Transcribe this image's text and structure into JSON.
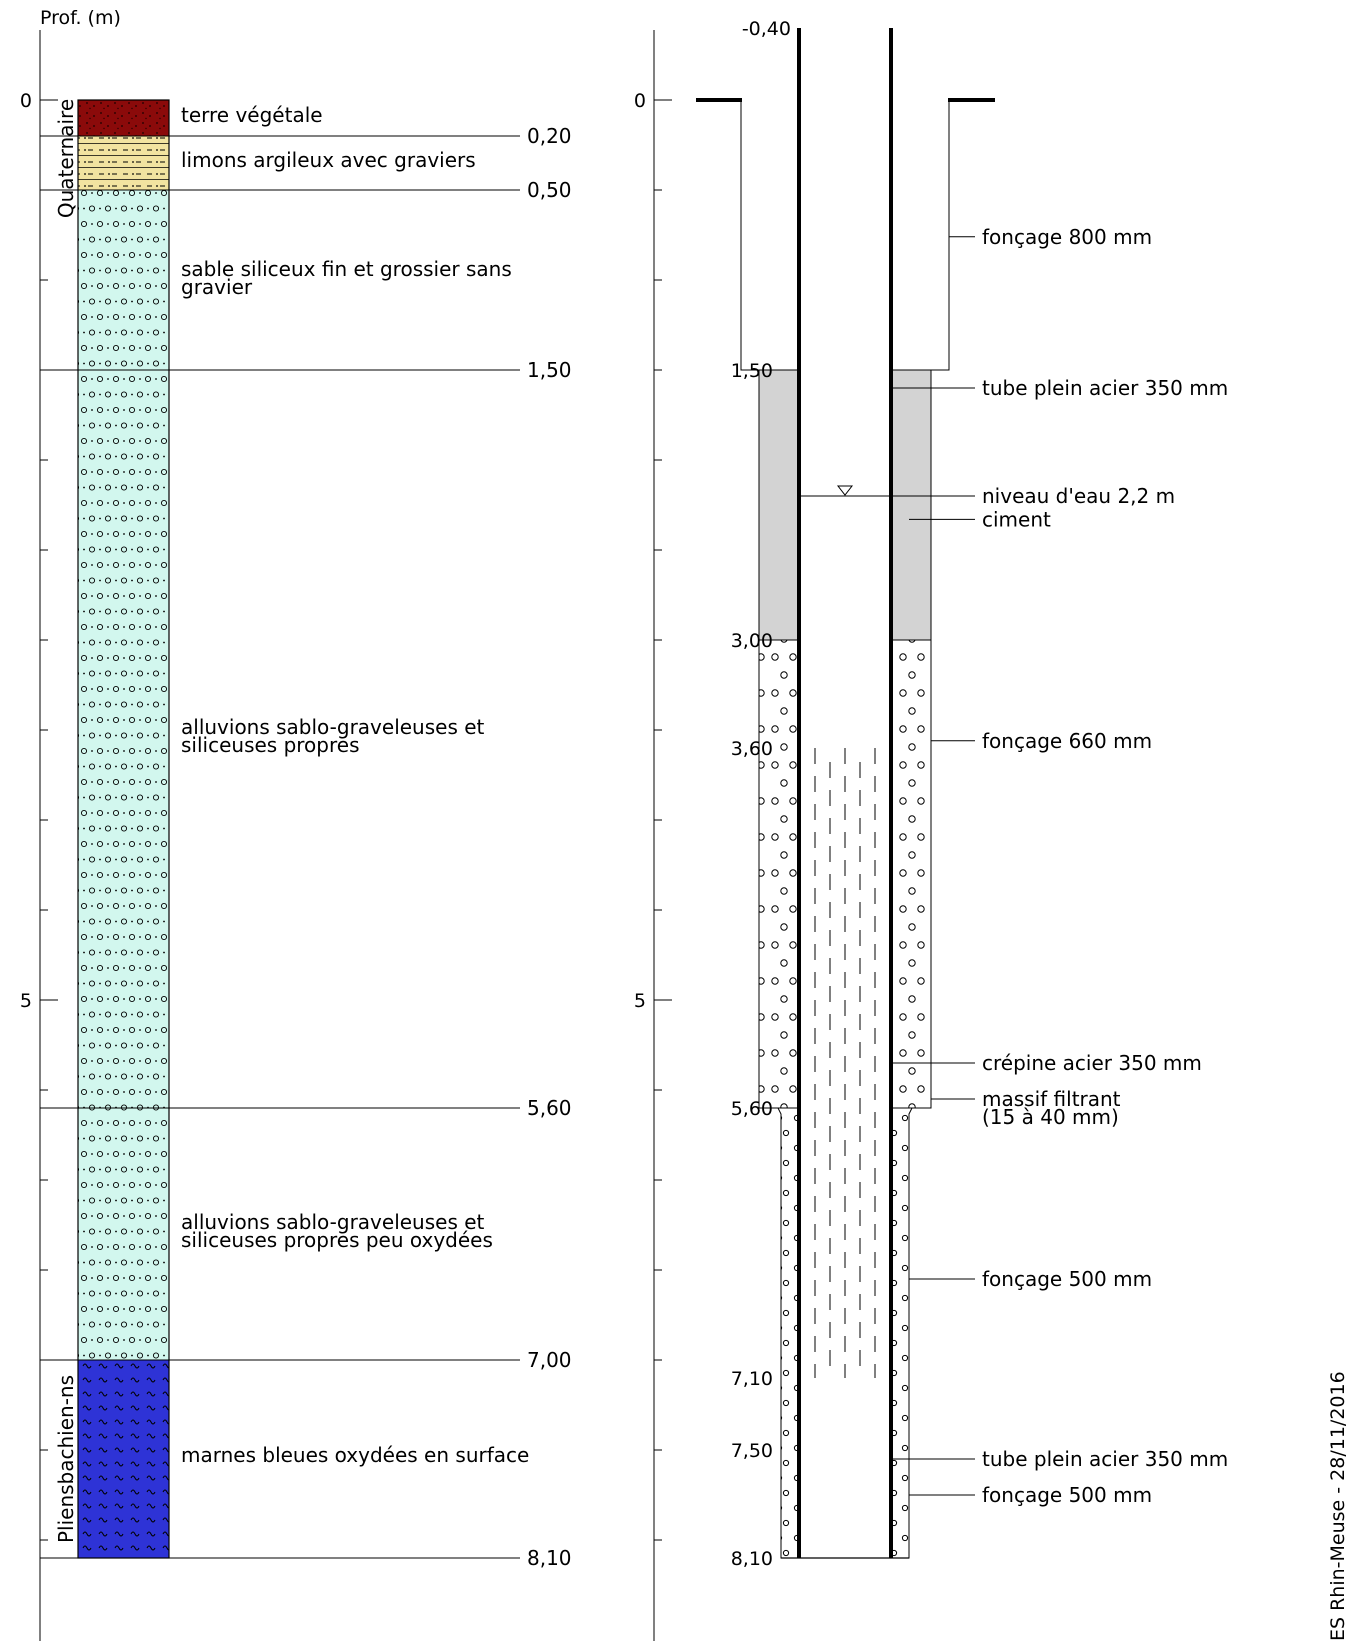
{
  "log": {
    "axis_title": "Prof. (m)",
    "axis_ticks": [
      "0",
      "5"
    ],
    "layers": [
      {
        "top": 0.0,
        "bottom": 0.2,
        "pattern": "soil",
        "color": "#8B0A0A",
        "label": "terre végétale"
      },
      {
        "top": 0.2,
        "bottom": 0.5,
        "pattern": "silt",
        "color": "#F2E3A0",
        "label": "limons argileux avec graviers"
      },
      {
        "top": 0.5,
        "bottom": 1.5,
        "pattern": "sand",
        "color": "#D2F7EE",
        "label": "sable siliceux fin et grossier sans",
        "label2": " gravier"
      },
      {
        "top": 1.5,
        "bottom": 5.6,
        "pattern": "sand",
        "color": "#D2F7EE",
        "label": "alluvions sablo-graveleuses et",
        "label2": " siliceuses propres"
      },
      {
        "top": 5.6,
        "bottom": 7.0,
        "pattern": "sand",
        "color": "#D2F7EE",
        "label": "alluvions sablo-graveleuses et",
        "label2": " siliceuses propres peu oxydées"
      },
      {
        "top": 7.0,
        "bottom": 8.1,
        "pattern": "marl",
        "color": "#2E33D6",
        "label": "marnes bleues oxydées en surface"
      }
    ],
    "boundaries": [
      {
        "depth": 0.2,
        "label": "0,20"
      },
      {
        "depth": 0.5,
        "label": "0,50"
      },
      {
        "depth": 1.5,
        "label": "1,50"
      },
      {
        "depth": 5.6,
        "label": "5,60"
      },
      {
        "depth": 7.0,
        "label": "7,00"
      },
      {
        "depth": 8.1,
        "label": "8,10"
      }
    ],
    "stratigraphy": [
      {
        "label": "Quaternaire",
        "top": 0.0,
        "bottom": 0.65
      },
      {
        "label": "Pliensbachien-ns",
        "top": 7.0,
        "bottom": 8.1
      }
    ]
  },
  "well": {
    "axis_ticks": [
      "0",
      "5"
    ],
    "top_label": "-0,40",
    "depth_labels": [
      {
        "depth": 1.5,
        "label": "1,50"
      },
      {
        "depth": 3.0,
        "label": "3,00"
      },
      {
        "depth": 3.6,
        "label": "3,60"
      },
      {
        "depth": 5.6,
        "label": "5,60"
      },
      {
        "depth": 7.1,
        "label": "7,10"
      },
      {
        "depth": 7.5,
        "label": "7,50"
      },
      {
        "depth": 8.1,
        "label": "8,10"
      }
    ],
    "water_level_m": 2.2,
    "cement": {
      "top": 1.5,
      "bottom": 3.0,
      "color": "#D3D3D3"
    },
    "screen": {
      "top": 3.6,
      "bottom": 7.1
    },
    "annotations": [
      {
        "depth": 0.76,
        "label": "fonçage 800 mm"
      },
      {
        "depth": 1.6,
        "label": "tube plein acier 350 mm"
      },
      {
        "depth": 2.2,
        "label": "niveau d'eau 2,2 m"
      },
      {
        "depth": 2.33,
        "label": "ciment"
      },
      {
        "depth": 3.56,
        "label": "fonçage 660 mm"
      },
      {
        "depth": 5.35,
        "label": "crépine acier 350 mm"
      },
      {
        "depth": 5.55,
        "label": "massif filtrant",
        "label2": "(15 à 40 mm)"
      },
      {
        "depth": 6.55,
        "label": "fonçage 500 mm"
      },
      {
        "depth": 7.55,
        "label": "tube plein acier 350 mm"
      },
      {
        "depth": 7.75,
        "label": "fonçage 500 mm"
      }
    ]
  },
  "footer": "ES Rhin-Meuse - 28/11/2016"
}
